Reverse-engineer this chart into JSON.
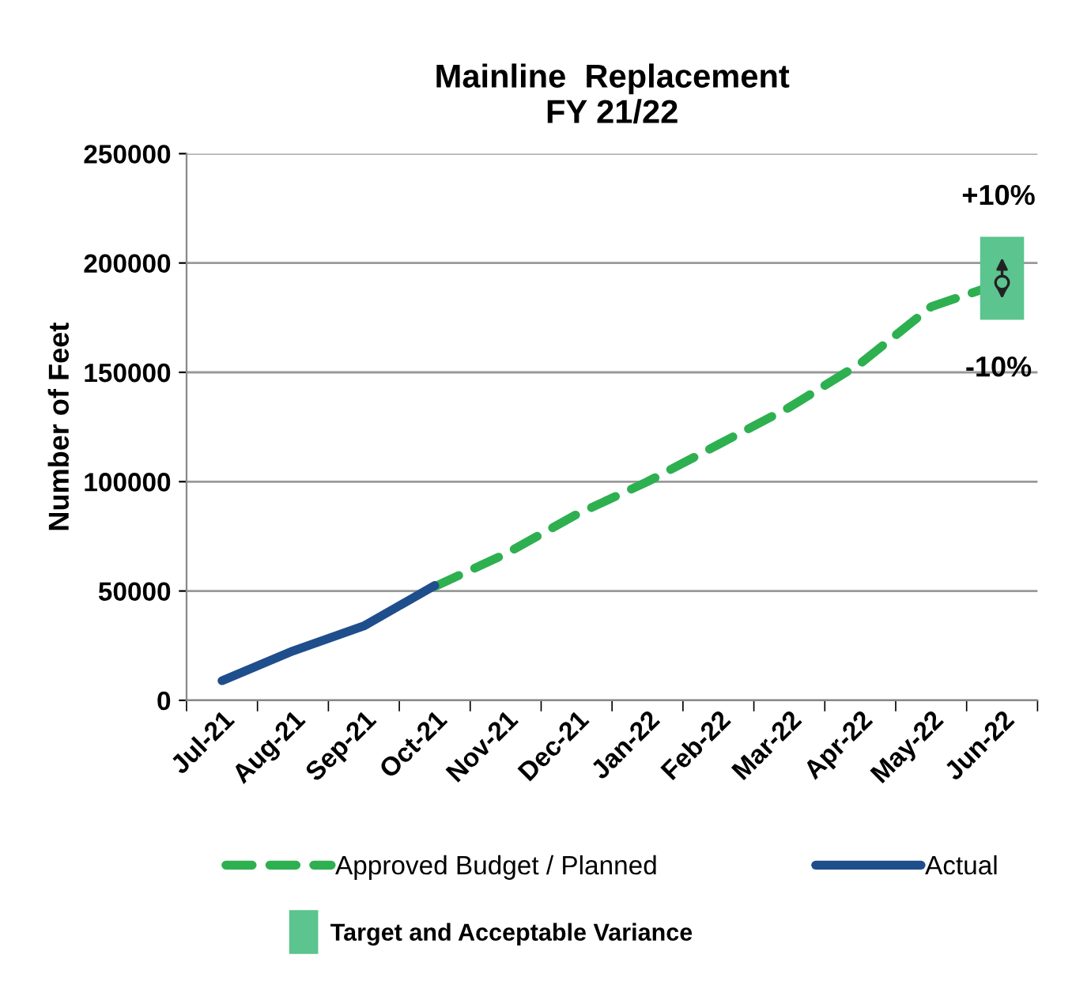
{
  "chart_data": {
    "type": "line",
    "title": "Mainline  Replacement\nFY 21/22",
    "ylabel": "Number of Feet",
    "categories": [
      "Jul-21",
      "Aug-21",
      "Sep-21",
      "Oct-21",
      "Nov-21",
      "Dec-21",
      "Jan-22",
      "Feb-22",
      "Mar-22",
      "Apr-22",
      "May-22",
      "Jun-22"
    ],
    "series": [
      {
        "name": "Approved Budget / Planned",
        "color": "#2eb050",
        "line_style": "dashed",
        "values": [
          null,
          null,
          null,
          52000,
          67000,
          85000,
          100000,
          117000,
          134000,
          154000,
          180000,
          191000
        ]
      },
      {
        "name": "Actual",
        "color": "#1f4e8c",
        "line_style": "solid",
        "values": [
          9000,
          22600,
          34000,
          52500,
          null,
          null,
          null,
          null,
          null,
          null,
          null,
          null
        ]
      },
      {
        "name": "Target and Acceptable Variance",
        "type": "scatter",
        "color": "#5cc48e",
        "values": [
          null,
          null,
          null,
          null,
          null,
          null,
          null,
          null,
          null,
          null,
          null,
          191000
        ],
        "errors": [
          null,
          null,
          null,
          null,
          null,
          null,
          null,
          null,
          null,
          null,
          null,
          [
            174000,
            212000
          ]
        ]
      }
    ],
    "annotations": [
      "+10%",
      "-10%"
    ],
    "ylim": [
      0,
      250000
    ],
    "yticks": [
      0,
      50000,
      100000,
      150000,
      200000,
      250000
    ],
    "grid": "y",
    "legend": "bottom"
  }
}
